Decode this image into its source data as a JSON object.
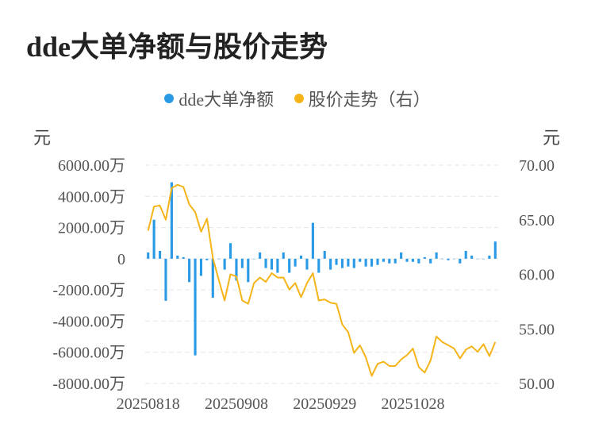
{
  "chart_data": {
    "type": "bar+line",
    "title": "dde大单净额与股价走势",
    "legend": [
      {
        "name": "dde大单净额",
        "color": "#2b9ae6"
      },
      {
        "name": "股价走势（右）",
        "color": "#f5b419"
      }
    ],
    "left_unit": "元",
    "right_unit": "元",
    "left_ticks": [
      "6000.00万",
      "4000.00万",
      "2000.00万",
      "0",
      "-2000.00万",
      "-4000.00万",
      "-6000.00万",
      "-8000.00万"
    ],
    "right_ticks": [
      "70.00",
      "65.00",
      "60.00",
      "55.00",
      "50.00"
    ],
    "x_ticks": [
      {
        "label": "20250818",
        "index": 0
      },
      {
        "label": "20250908",
        "index": 15
      },
      {
        "label": "20250929",
        "index": 30
      },
      {
        "label": "20251028",
        "index": 45
      }
    ],
    "ylim_left": [
      -8000,
      6000
    ],
    "ylim_right": [
      50,
      70
    ],
    "bar_values": [
      400,
      2500,
      500,
      -2700,
      4900,
      200,
      100,
      -1500,
      -6200,
      -1100,
      -100,
      -2500,
      0,
      -700,
      1000,
      -1400,
      -600,
      -1500,
      0,
      400,
      -600,
      -700,
      -900,
      400,
      -900,
      -500,
      200,
      -700,
      2300,
      -900,
      500,
      -700,
      -400,
      -600,
      -500,
      -600,
      -200,
      -500,
      -500,
      -400,
      -200,
      -300,
      -300,
      400,
      -200,
      -200,
      -300,
      100,
      -300,
      400,
      0,
      -100,
      0,
      -300,
      500,
      200,
      0,
      0,
      200,
      1100
    ],
    "line_values": [
      64.0,
      66.2,
      66.3,
      65.0,
      67.9,
      68.2,
      68.0,
      66.4,
      65.7,
      63.9,
      65.1,
      61.5,
      59.5,
      57.6,
      60.0,
      59.8,
      57.6,
      57.3,
      59.2,
      59.7,
      59.3,
      60.1,
      59.7,
      59.7,
      58.6,
      59.2,
      57.9,
      59.2,
      60.1,
      57.6,
      57.7,
      57.4,
      57.3,
      55.4,
      54.7,
      52.8,
      53.5,
      52.4,
      50.7,
      51.8,
      52.0,
      51.6,
      51.6,
      52.2,
      52.6,
      53.2,
      51.5,
      51.0,
      52.1,
      54.3,
      53.8,
      53.5,
      53.2,
      52.3,
      53.1,
      53.4,
      52.9,
      53.6,
      52.5,
      53.8
    ]
  }
}
